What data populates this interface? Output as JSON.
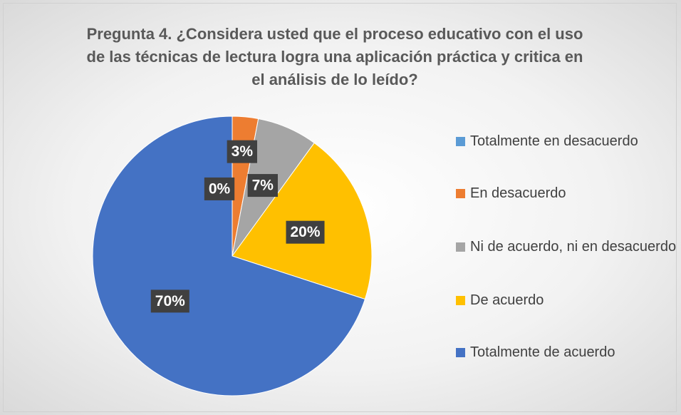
{
  "chart_data": {
    "type": "pie",
    "title": "Pregunta 4. ¿Considera usted que el proceso educativo con el uso de las técnicas de lectura logra una aplicación práctica y critica en el análisis de lo leído?",
    "categories": [
      "Totalmente en desacuerdo",
      "En desacuerdo",
      "Ni de acuerdo, ni en desacuerdo",
      "De acuerdo",
      "Totalmente de acuerdo"
    ],
    "values": [
      0,
      3,
      7,
      20,
      70
    ],
    "value_labels": [
      "0%",
      "3%",
      "7%",
      "20%",
      "70%"
    ],
    "colors": [
      "#5b9bd5",
      "#ed7d31",
      "#a5a5a5",
      "#ffc000",
      "#4472c4"
    ],
    "legend": "right"
  }
}
